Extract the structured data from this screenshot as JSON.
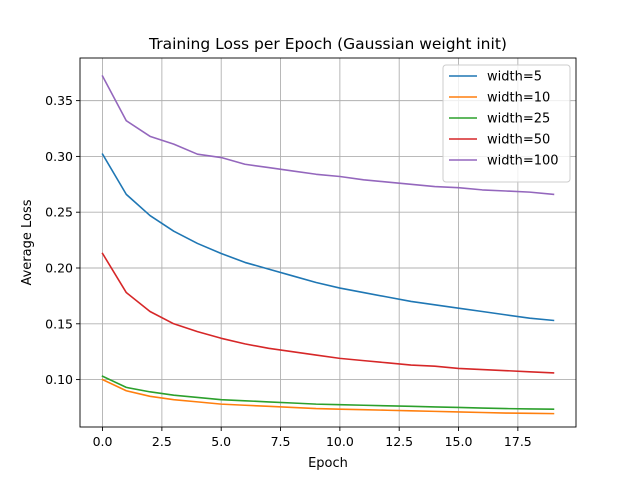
{
  "chart_data": {
    "type": "line",
    "title": "Training Loss per Epoch (Gaussian weight init)",
    "xlabel": "Epoch",
    "ylabel": "Average Loss",
    "xlim": [
      -0.95,
      19.95
    ],
    "ylim": [
      0.0575,
      0.3882
    ],
    "xticks": [
      0.0,
      2.5,
      5.0,
      7.5,
      10.0,
      12.5,
      15.0,
      17.5
    ],
    "xtick_labels": [
      "0.0",
      "2.5",
      "5.0",
      "7.5",
      "10.0",
      "12.5",
      "15.0",
      "17.5"
    ],
    "yticks": [
      0.1,
      0.15,
      0.2,
      0.25,
      0.3,
      0.35
    ],
    "ytick_labels": [
      "0.10",
      "0.15",
      "0.20",
      "0.25",
      "0.30",
      "0.35"
    ],
    "grid": true,
    "legend_position": "top-right",
    "x": [
      0,
      1,
      2,
      3,
      4,
      5,
      6,
      7,
      8,
      9,
      10,
      11,
      12,
      13,
      14,
      15,
      16,
      17,
      18,
      19
    ],
    "series": [
      {
        "name": "width=5",
        "color": "#1f77b4",
        "values": [
          0.302,
          0.266,
          0.247,
          0.233,
          0.222,
          0.213,
          0.205,
          0.199,
          0.193,
          0.187,
          0.182,
          0.178,
          0.174,
          0.17,
          0.167,
          0.164,
          0.161,
          0.158,
          0.155,
          0.153
        ]
      },
      {
        "name": "width=10",
        "color": "#ff7f0e",
        "values": [
          0.1,
          0.09,
          0.085,
          0.082,
          0.08,
          0.078,
          0.077,
          0.076,
          0.075,
          0.074,
          0.0735,
          0.073,
          0.0725,
          0.072,
          0.0715,
          0.071,
          0.0705,
          0.07,
          0.0698,
          0.0695
        ]
      },
      {
        "name": "width=25",
        "color": "#2ca02c",
        "values": [
          0.103,
          0.093,
          0.089,
          0.086,
          0.084,
          0.082,
          0.081,
          0.08,
          0.079,
          0.078,
          0.0775,
          0.077,
          0.0765,
          0.076,
          0.0755,
          0.075,
          0.0745,
          0.074,
          0.0737,
          0.0735
        ]
      },
      {
        "name": "width=50",
        "color": "#d62728",
        "values": [
          0.213,
          0.178,
          0.161,
          0.15,
          0.143,
          0.137,
          0.132,
          0.128,
          0.125,
          0.122,
          0.119,
          0.117,
          0.115,
          0.113,
          0.112,
          0.11,
          0.109,
          0.108,
          0.107,
          0.106
        ]
      },
      {
        "name": "width=100",
        "color": "#9467bd",
        "values": [
          0.372,
          0.332,
          0.318,
          0.311,
          0.302,
          0.299,
          0.293,
          0.29,
          0.287,
          0.284,
          0.282,
          0.279,
          0.277,
          0.275,
          0.273,
          0.272,
          0.27,
          0.269,
          0.268,
          0.266
        ]
      }
    ]
  }
}
